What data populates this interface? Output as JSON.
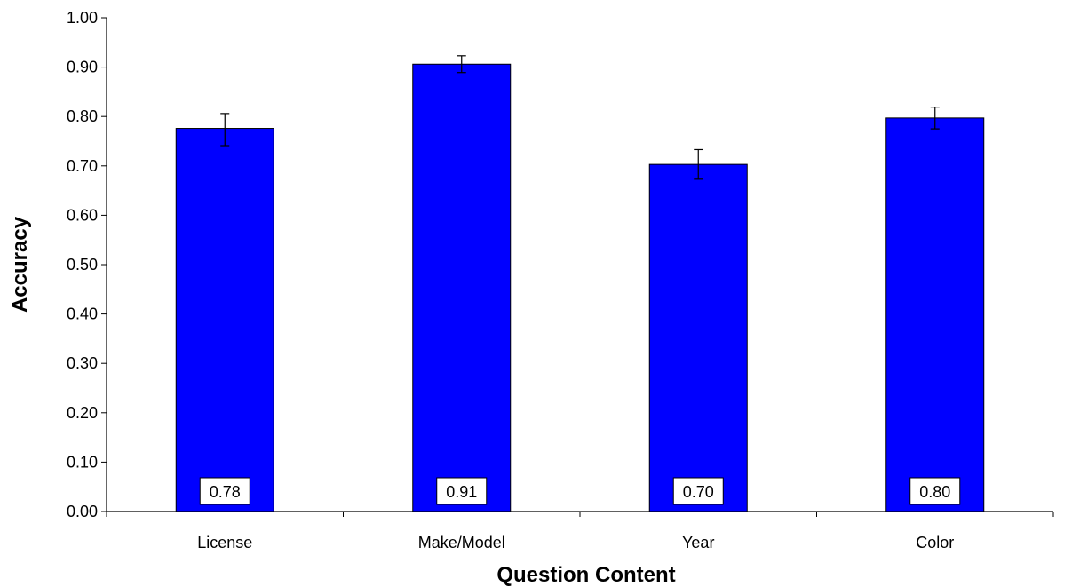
{
  "chart_data": {
    "type": "bar",
    "title": "",
    "xlabel": "Question Content",
    "ylabel": "Accuracy",
    "categories": [
      "License",
      "Make/Model",
      "Year",
      "Color"
    ],
    "values": [
      0.776,
      0.906,
      0.703,
      0.797
    ],
    "error": [
      [
        0.741,
        0.806
      ],
      [
        0.889,
        0.923
      ],
      [
        0.673,
        0.733
      ],
      [
        0.775,
        0.819
      ]
    ],
    "data_labels": [
      "0.78",
      "0.91",
      "0.70",
      "0.80"
    ],
    "ylim": [
      0,
      1
    ],
    "yticks": [
      0,
      0.1,
      0.2,
      0.3,
      0.4,
      0.5,
      0.6,
      0.7,
      0.8,
      0.9,
      1.0
    ],
    "ytick_labels": [
      "0.00",
      "0.10",
      "0.20",
      "0.30",
      "0.40",
      "0.50",
      "0.60",
      "0.70",
      "0.80",
      "0.90",
      "1.00"
    ],
    "grid": false,
    "legend": "none",
    "colors": {
      "bar": "#0000FF",
      "bar_edge": "#000000",
      "axis": "#000000",
      "label_box": "#FFFFFF"
    }
  }
}
